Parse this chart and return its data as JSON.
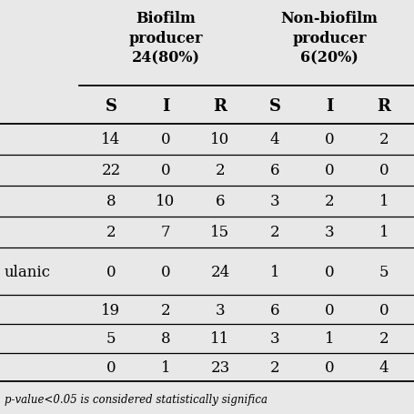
{
  "col_headers": [
    "S",
    "I",
    "R",
    "S",
    "I",
    "R"
  ],
  "rows": [
    [
      "14",
      "0",
      "10",
      "4",
      "0",
      "2"
    ],
    [
      "22",
      "0",
      "2",
      "6",
      "0",
      "0"
    ],
    [
      "8",
      "10",
      "6",
      "3",
      "2",
      "1"
    ],
    [
      "2",
      "7",
      "15",
      "2",
      "3",
      "1"
    ],
    [
      "0",
      "0",
      "24",
      "1",
      "0",
      "5"
    ],
    [
      "19",
      "2",
      "3",
      "6",
      "0",
      "0"
    ],
    [
      "5",
      "8",
      "11",
      "3",
      "1",
      "2"
    ],
    [
      "0",
      "1",
      "23",
      "2",
      "0",
      "4"
    ]
  ],
  "row_label_4": "ulanic",
  "footnote": "p-value<0.05 is considered statistically significa",
  "bg_color": "#e8e8e8",
  "text_color": "#000000",
  "header_fontsize": 11.5,
  "data_fontsize": 12,
  "col_header_fontsize": 13,
  "footnote_fontsize": 8.5,
  "biofilm_lines": [
    "Biofilm",
    "producer",
    "24(80%)"
  ],
  "nonbiofilm_lines": [
    "Non-biofilm",
    "producer",
    "6(20%)"
  ]
}
